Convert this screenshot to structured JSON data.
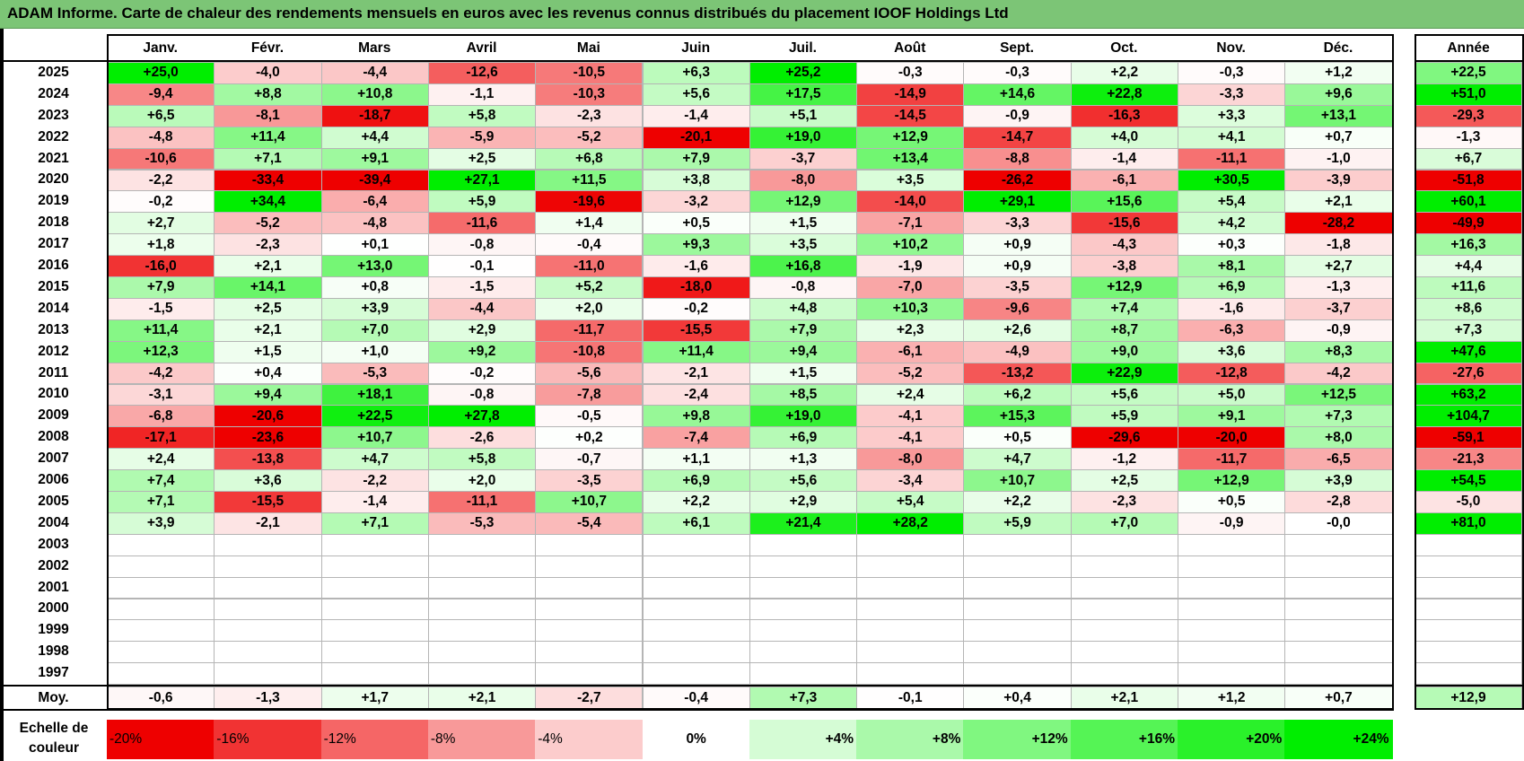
{
  "title": "ADAM Informe. Carte de chaleur des rendements mensuels en euros avec les revenus connus distribués du placement IOOF Holdings Ltd",
  "scale_label_line1": "Echelle de",
  "scale_label_line2": "couleur",
  "colors": {
    "title_bg": "#7cc576",
    "max_green": "#00ee00",
    "max_red": "#ee0000",
    "white": "#ffffff"
  },
  "chart_data": {
    "type": "heatmap",
    "title": "ADAM Informe. Carte de chaleur des rendements mensuels en euros avec les revenus connus distribués du placement IOOF Holdings Ltd",
    "months": [
      "Janv.",
      "Févr.",
      "Mars",
      "Avril",
      "Mai",
      "Juin",
      "Juil.",
      "Août",
      "Sept.",
      "Oct.",
      "Nov.",
      "Déc."
    ],
    "year_header": "Année",
    "avg_label": "Moy.",
    "rows": [
      {
        "year": "2025",
        "values": [
          "+25,0",
          "-4,0",
          "-4,4",
          "-12,6",
          "-10,5",
          "+6,3",
          "+25,2",
          "-0,3",
          "-0,3",
          "+2,2",
          "-0,3",
          "+1,2"
        ],
        "annual": "+22,5"
      },
      {
        "year": "2024",
        "values": [
          "-9,4",
          "+8,8",
          "+10,8",
          "-1,1",
          "-10,3",
          "+5,6",
          "+17,5",
          "-14,9",
          "+14,6",
          "+22,8",
          "-3,3",
          "+9,6"
        ],
        "annual": "+51,0"
      },
      {
        "year": "2023",
        "values": [
          "+6,5",
          "-8,1",
          "-18,7",
          "+5,8",
          "-2,3",
          "-1,4",
          "+5,1",
          "-14,5",
          "-0,9",
          "-16,3",
          "+3,3",
          "+13,1"
        ],
        "annual": "-29,3"
      },
      {
        "year": "2022",
        "values": [
          "-4,8",
          "+11,4",
          "+4,4",
          "-5,9",
          "-5,2",
          "-20,1",
          "+19,0",
          "+12,9",
          "-14,7",
          "+4,0",
          "+4,1",
          "+0,7"
        ],
        "annual": "-1,3"
      },
      {
        "year": "2021",
        "values": [
          "-10,6",
          "+7,1",
          "+9,1",
          "+2,5",
          "+6,8",
          "+7,9",
          "-3,7",
          "+13,4",
          "-8,8",
          "-1,4",
          "-11,1",
          "-1,0"
        ],
        "annual": "+6,7"
      },
      {
        "year": "2020",
        "values": [
          "-2,2",
          "-33,4",
          "-39,4",
          "+27,1",
          "+11,5",
          "+3,8",
          "-8,0",
          "+3,5",
          "-26,2",
          "-6,1",
          "+30,5",
          "-3,9"
        ],
        "annual": "-51,8"
      },
      {
        "year": "2019",
        "values": [
          "-0,2",
          "+34,4",
          "-6,4",
          "+5,9",
          "-19,6",
          "-3,2",
          "+12,9",
          "-14,0",
          "+29,1",
          "+15,6",
          "+5,4",
          "+2,1"
        ],
        "annual": "+60,1"
      },
      {
        "year": "2018",
        "values": [
          "+2,7",
          "-5,2",
          "-4,8",
          "-11,6",
          "+1,4",
          "+0,5",
          "+1,5",
          "-7,1",
          "-3,3",
          "-15,6",
          "+4,2",
          "-28,2"
        ],
        "annual": "-49,9"
      },
      {
        "year": "2017",
        "values": [
          "+1,8",
          "-2,3",
          "+0,1",
          "-0,8",
          "-0,4",
          "+9,3",
          "+3,5",
          "+10,2",
          "+0,9",
          "-4,3",
          "+0,3",
          "-1,8"
        ],
        "annual": "+16,3"
      },
      {
        "year": "2016",
        "values": [
          "-16,0",
          "+2,1",
          "+13,0",
          "-0,1",
          "-11,0",
          "-1,6",
          "+16,8",
          "-1,9",
          "+0,9",
          "-3,8",
          "+8,1",
          "+2,7"
        ],
        "annual": "+4,4"
      },
      {
        "year": "2015",
        "values": [
          "+7,9",
          "+14,1",
          "+0,8",
          "-1,5",
          "+5,2",
          "-18,0",
          "-0,8",
          "-7,0",
          "-3,5",
          "+12,9",
          "+6,9",
          "-1,3"
        ],
        "annual": "+11,6"
      },
      {
        "year": "2014",
        "values": [
          "-1,5",
          "+2,5",
          "+3,9",
          "-4,4",
          "+2,0",
          "-0,2",
          "+4,8",
          "+10,3",
          "-9,6",
          "+7,4",
          "-1,6",
          "-3,7"
        ],
        "annual": "+8,6"
      },
      {
        "year": "2013",
        "values": [
          "+11,4",
          "+2,1",
          "+7,0",
          "+2,9",
          "-11,7",
          "-15,5",
          "+7,9",
          "+2,3",
          "+2,6",
          "+8,7",
          "-6,3",
          "-0,9"
        ],
        "annual": "+7,3"
      },
      {
        "year": "2012",
        "values": [
          "+12,3",
          "+1,5",
          "+1,0",
          "+9,2",
          "-10,8",
          "+11,4",
          "+9,4",
          "-6,1",
          "-4,9",
          "+9,0",
          "+3,6",
          "+8,3"
        ],
        "annual": "+47,6"
      },
      {
        "year": "2011",
        "values": [
          "-4,2",
          "+0,4",
          "-5,3",
          "-0,2",
          "-5,6",
          "-2,1",
          "+1,5",
          "-5,2",
          "-13,2",
          "+22,9",
          "-12,8",
          "-4,2"
        ],
        "annual": "-27,6"
      },
      {
        "year": "2010",
        "values": [
          "-3,1",
          "+9,4",
          "+18,1",
          "-0,8",
          "-7,8",
          "-2,4",
          "+8,5",
          "+2,4",
          "+6,2",
          "+5,6",
          "+5,0",
          "+12,5"
        ],
        "annual": "+63,2"
      },
      {
        "year": "2009",
        "values": [
          "-6,8",
          "-20,6",
          "+22,5",
          "+27,8",
          "-0,5",
          "+9,8",
          "+19,0",
          "-4,1",
          "+15,3",
          "+5,9",
          "+9,1",
          "+7,3"
        ],
        "annual": "+104,7"
      },
      {
        "year": "2008",
        "values": [
          "-17,1",
          "-23,6",
          "+10,7",
          "-2,6",
          "+0,2",
          "-7,4",
          "+6,9",
          "-4,1",
          "+0,5",
          "-29,6",
          "-20,0",
          "+8,0"
        ],
        "annual": "-59,1"
      },
      {
        "year": "2007",
        "values": [
          "+2,4",
          "-13,8",
          "+4,7",
          "+5,8",
          "-0,7",
          "+1,1",
          "+1,3",
          "-8,0",
          "+4,7",
          "-1,2",
          "-11,7",
          "-6,5"
        ],
        "annual": "-21,3"
      },
      {
        "year": "2006",
        "values": [
          "+7,4",
          "+3,6",
          "-2,2",
          "+2,0",
          "-3,5",
          "+6,9",
          "+5,6",
          "-3,4",
          "+10,7",
          "+2,5",
          "+12,9",
          "+3,9"
        ],
        "annual": "+54,5"
      },
      {
        "year": "2005",
        "values": [
          "+7,1",
          "-15,5",
          "-1,4",
          "-11,1",
          "+10,7",
          "+2,2",
          "+2,9",
          "+5,4",
          "+2,2",
          "-2,3",
          "+0,5",
          "-2,8"
        ],
        "annual": "-5,0"
      },
      {
        "year": "2004",
        "values": [
          "+3,9",
          "-2,1",
          "+7,1",
          "-5,3",
          "-5,4",
          "+6,1",
          "+21,4",
          "+28,2",
          "+5,9",
          "+7,0",
          "-0,9",
          "-0,0"
        ],
        "annual": "+81,0"
      },
      {
        "year": "2003",
        "values": [
          "",
          "",
          "",
          "",
          "",
          "",
          "",
          "",
          "",
          "",
          "",
          ""
        ],
        "annual": ""
      },
      {
        "year": "2002",
        "values": [
          "",
          "",
          "",
          "",
          "",
          "",
          "",
          "",
          "",
          "",
          "",
          ""
        ],
        "annual": ""
      },
      {
        "year": "2001",
        "values": [
          "",
          "",
          "",
          "",
          "",
          "",
          "",
          "",
          "",
          "",
          "",
          ""
        ],
        "annual": ""
      },
      {
        "year": "2000",
        "values": [
          "",
          "",
          "",
          "",
          "",
          "",
          "",
          "",
          "",
          "",
          "",
          ""
        ],
        "annual": ""
      },
      {
        "year": "1999",
        "values": [
          "",
          "",
          "",
          "",
          "",
          "",
          "",
          "",
          "",
          "",
          "",
          ""
        ],
        "annual": ""
      },
      {
        "year": "1998",
        "values": [
          "",
          "",
          "",
          "",
          "",
          "",
          "",
          "",
          "",
          "",
          "",
          ""
        ],
        "annual": ""
      },
      {
        "year": "1997",
        "values": [
          "",
          "",
          "",
          "",
          "",
          "",
          "",
          "",
          "",
          "",
          "",
          ""
        ],
        "annual": ""
      }
    ],
    "averages": [
      "-0,6",
      "-1,3",
      "+1,7",
      "+2,1",
      "-2,7",
      "-0,4",
      "+7,3",
      "-0,1",
      "+0,4",
      "+2,1",
      "+1,2",
      "+0,7"
    ],
    "annual_average": "+12,9",
    "scale": [
      "-20%",
      "-16%",
      "-12%",
      "-8%",
      "-4%",
      "0%",
      "+4%",
      "+8%",
      "+12%",
      "+16%",
      "+20%",
      "+24%"
    ],
    "scale_values": [
      -20,
      -16,
      -12,
      -8,
      -4,
      0,
      4,
      8,
      12,
      16,
      20,
      24
    ]
  }
}
